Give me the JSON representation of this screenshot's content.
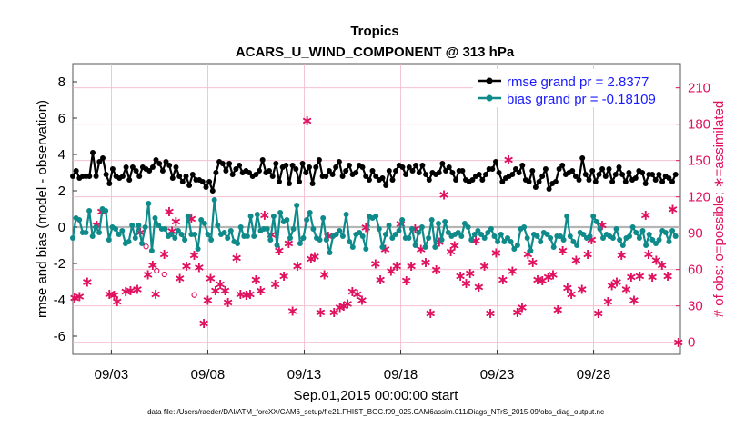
{
  "chart_data": {
    "type": "line",
    "title": "Tropics",
    "subtitle": "ACARS_U_WIND_COMPONENT @ 313 hPa",
    "xlabel": "Sep.01,2015 00:00:00 start",
    "ylabel": "rmse and bias (model - observation)",
    "y2label": "# of obs: o=possible; ∗=assimilated",
    "footer": "data file: /Users/raeder/DAI/ATM_forcXX/CAM6_setup/f.e21.FHIST_BGC.f09_025.CAM6assim.011/Diags_NTrS_2015-09/obs_diag_output.nc",
    "x_range_days": [
      0,
      31.5
    ],
    "x_ticks": [
      {
        "day": 2,
        "label": "09/03"
      },
      {
        "day": 7,
        "label": "09/08"
      },
      {
        "day": 12,
        "label": "09/13"
      },
      {
        "day": 17,
        "label": "09/18"
      },
      {
        "day": 22,
        "label": "09/23"
      },
      {
        "day": 27,
        "label": "09/28"
      }
    ],
    "ylim": [
      -7,
      9
    ],
    "y_ticks": [
      -6,
      -4,
      -2,
      0,
      2,
      4,
      6,
      8
    ],
    "y2lim": [
      -10,
      230
    ],
    "y2_ticks": [
      0,
      30,
      60,
      90,
      120,
      150,
      180,
      210
    ],
    "zero_line": 0,
    "legend_position": "top-right",
    "series": [
      {
        "name": "rmse grand pr = 2.8377",
        "color": "#000000",
        "values": [
          2.8,
          3.1,
          2.7,
          2.8,
          2.8,
          2.8,
          4.1,
          2.8,
          3.6,
          3.8,
          2.9,
          2.4,
          3.2,
          2.8,
          2.7,
          2.8,
          3.3,
          2.6,
          3.3,
          3.1,
          2.8,
          3.3,
          3.2,
          3.1,
          3.3,
          3.7,
          3.5,
          3.1,
          3.6,
          3.4,
          2.7,
          3.3,
          2.8,
          2.5,
          2.8,
          2.3,
          2.9,
          2.6,
          2.6,
          2.5,
          2.2,
          2.5,
          2.0,
          3.0,
          3.6,
          3.5,
          3.1,
          3.5,
          2.9,
          3.2,
          3.4,
          3.0,
          3.1,
          3.0,
          2.8,
          2.9,
          3.1,
          3.7,
          3.0,
          3.1,
          2.8,
          3.5,
          2.5,
          3.3,
          3.4,
          2.4,
          3.4,
          3.2,
          2.5,
          3.5,
          3.0,
          3.3,
          2.4,
          3.3,
          3.7,
          2.8,
          2.8,
          3.1,
          2.9,
          3.3,
          3.6,
          2.8,
          3.1,
          3.4,
          2.9,
          3.0,
          3.4,
          3.3,
          2.8,
          2.6,
          3.1,
          2.8,
          2.6,
          2.7,
          2.3,
          3.1,
          2.6,
          3.1,
          3.4,
          3.3,
          2.9,
          3.3,
          3.1,
          3.4,
          3.0,
          3.4,
          2.9,
          2.6,
          3.0,
          2.9,
          3.0,
          3.5,
          3.1,
          3.3,
          3.0,
          2.6,
          3.1,
          3.1,
          2.6,
          2.5,
          2.6,
          2.8,
          2.9,
          2.6,
          2.9,
          3.2,
          3.2,
          3.6,
          3.0,
          2.5,
          2.7,
          2.8,
          2.9,
          3.2,
          3.0,
          3.4,
          2.6,
          2.5,
          3.1,
          2.2,
          2.5,
          2.8,
          3.2,
          2.1,
          2.4,
          2.5,
          3.2,
          3.4,
          2.9,
          3.0,
          3.1,
          2.8,
          2.6,
          3.8,
          2.9,
          2.6,
          3.1,
          2.5,
          2.9,
          3.2,
          2.8,
          3.2,
          2.5,
          2.9,
          3.3,
          2.9,
          2.5,
          3.0,
          2.6,
          2.7,
          3.1,
          3.0,
          2.4,
          2.9,
          2.9,
          2.6,
          2.9,
          2.5,
          2.8,
          2.7,
          2.5,
          2.9
        ]
      },
      {
        "name": "bias grand pr = -0.18109",
        "color": "#0e8a8a",
        "values": [
          -0.6,
          0.5,
          0.4,
          -0.3,
          -0.3,
          0.9,
          -0.5,
          0.0,
          -0.3,
          1.0,
          0.9,
          -0.7,
          0.0,
          -0.1,
          -0.4,
          -0.2,
          -0.9,
          -0.8,
          0.1,
          -0.6,
          0.1,
          -0.9,
          0.0,
          1.3,
          -1.3,
          0.5,
          0.1,
          -0.1,
          -0.1,
          -0.5,
          -0.4,
          -0.6,
          -0.2,
          -0.4,
          -0.7,
          0.6,
          -0.4,
          -0.4,
          -1.2,
          0.4,
          0.2,
          -0.4,
          -0.7,
          1.5,
          0.1,
          -0.4,
          -0.3,
          -0.6,
          -0.2,
          -0.8,
          -0.9,
          0.0,
          -0.5,
          -0.5,
          0.6,
          -0.5,
          0.7,
          -0.2,
          -0.1,
          -0.1,
          -0.7,
          0.6,
          -1.0,
          0.8,
          0.3,
          0.4,
          -0.6,
          -0.1,
          1.2,
          -0.9,
          -0.6,
          0.4,
          0.8,
          -0.1,
          -0.6,
          -0.7,
          0.5,
          -0.7,
          -1.4,
          -0.5,
          -0.4,
          -0.2,
          -0.5,
          0.7,
          -0.8,
          -1.1,
          -0.4,
          -0.3,
          -0.5,
          -1.2,
          0.6,
          0.5,
          0.6,
          -0.1,
          -1.1,
          -0.4,
          0.1,
          -0.6,
          -0.4,
          -0.2,
          0.4,
          -0.6,
          -0.6,
          -0.1,
          -1.0,
          -0.3,
          0.0,
          -1.1,
          -0.6,
          0.4,
          -1.1,
          0.2,
          -0.7,
          0.3,
          -0.3,
          -0.5,
          -0.4,
          -0.3,
          -0.5,
          0.2,
          0.0,
          -0.7,
          -0.4,
          -0.2,
          -0.4,
          -0.6,
          -0.3,
          -0.1,
          -0.5,
          -0.8,
          -0.4,
          -0.8,
          -0.6,
          -0.8,
          -1.2,
          -1.0,
          -0.1,
          0.0,
          -0.6,
          -1.3,
          -0.4,
          -0.5,
          -0.8,
          -0.3,
          -0.4,
          -0.6,
          -1.1,
          -0.5,
          -0.5,
          -0.7,
          0.6,
          -0.5,
          -0.8,
          -1.0,
          -0.3,
          -0.4,
          -0.6,
          -0.5,
          0.6,
          0.3,
          -0.1,
          -0.6,
          -0.4,
          -0.5,
          -0.6,
          -0.1,
          -0.7,
          -1.0,
          -0.6,
          -0.5,
          0.0,
          -0.3,
          -0.6,
          -0.2,
          -1.0,
          -0.4,
          -0.7,
          -0.9,
          -0.7,
          -0.2,
          -0.3,
          -0.8,
          -0.2,
          -0.5
        ]
      },
      {
        "name": "# of obs assimilated",
        "axis": "right",
        "color": "#e0115f",
        "points": [
          [
            0.1,
            37
          ],
          [
            0.35,
            38
          ],
          [
            0.75,
            50
          ],
          [
            1.25,
            97
          ],
          [
            1.5,
            108
          ],
          [
            1.9,
            40
          ],
          [
            2.15,
            39
          ],
          [
            2.3,
            34
          ],
          [
            2.75,
            42
          ],
          [
            3.0,
            43
          ],
          [
            3.35,
            44
          ],
          [
            3.5,
            91
          ],
          [
            3.9,
            56
          ],
          [
            4.15,
            64
          ],
          [
            4.3,
            40
          ],
          [
            4.75,
            73
          ],
          [
            5.0,
            108
          ],
          [
            5.15,
            92
          ],
          [
            5.35,
            100
          ],
          [
            5.55,
            53
          ],
          [
            5.9,
            63
          ],
          [
            6.15,
            102
          ],
          [
            6.3,
            72
          ],
          [
            6.55,
            62
          ],
          [
            6.8,
            16
          ],
          [
            7.0,
            35
          ],
          [
            7.15,
            53
          ],
          [
            7.4,
            43
          ],
          [
            7.65,
            48
          ],
          [
            7.9,
            43
          ],
          [
            8.05,
            33
          ],
          [
            8.5,
            70
          ],
          [
            8.7,
            40
          ],
          [
            9.0,
            39
          ],
          [
            9.2,
            40
          ],
          [
            9.5,
            52
          ],
          [
            9.75,
            43
          ],
          [
            9.95,
            105
          ],
          [
            10.3,
            89
          ],
          [
            10.5,
            48
          ],
          [
            10.7,
            76
          ],
          [
            10.95,
            55
          ],
          [
            11.2,
            82
          ],
          [
            11.4,
            26
          ],
          [
            11.65,
            63
          ],
          [
            12.15,
            183
          ],
          [
            12.35,
            69
          ],
          [
            12.55,
            71
          ],
          [
            12.85,
            25
          ],
          [
            13.05,
            56
          ],
          [
            13.25,
            88
          ],
          [
            13.55,
            25
          ],
          [
            13.85,
            29
          ],
          [
            14.05,
            30
          ],
          [
            14.25,
            32
          ],
          [
            14.5,
            42
          ],
          [
            14.75,
            40
          ],
          [
            15.0,
            35
          ],
          [
            15.2,
            95
          ],
          [
            15.7,
            65
          ],
          [
            15.95,
            52
          ],
          [
            16.2,
            77
          ],
          [
            16.5,
            59
          ],
          [
            16.8,
            63
          ],
          [
            17.0,
            98
          ],
          [
            17.3,
            51
          ],
          [
            17.55,
            63
          ],
          [
            17.75,
            94
          ],
          [
            18.05,
            77
          ],
          [
            18.3,
            66
          ],
          [
            18.55,
            24
          ],
          [
            18.85,
            60
          ],
          [
            19.0,
            83
          ],
          [
            19.25,
            122
          ],
          [
            19.6,
            75
          ],
          [
            19.8,
            80
          ],
          [
            20.1,
            55
          ],
          [
            20.4,
            49
          ],
          [
            20.6,
            57
          ],
          [
            20.9,
            84
          ],
          [
            21.05,
            46
          ],
          [
            21.35,
            63
          ],
          [
            21.65,
            24
          ],
          [
            21.95,
            74
          ],
          [
            22.3,
            52
          ],
          [
            22.6,
            151
          ],
          [
            22.8,
            59
          ],
          [
            23.05,
            25
          ],
          [
            23.3,
            29
          ],
          [
            23.6,
            73
          ],
          [
            23.85,
            66
          ],
          [
            24.1,
            52
          ],
          [
            24.35,
            51
          ],
          [
            24.65,
            54
          ],
          [
            24.9,
            56
          ],
          [
            25.15,
            27
          ],
          [
            25.4,
            76
          ],
          [
            25.65,
            45
          ],
          [
            25.85,
            40
          ],
          [
            26.1,
            68
          ],
          [
            26.4,
            44
          ],
          [
            26.7,
            73
          ],
          [
            26.9,
            85
          ],
          [
            27.25,
            24
          ],
          [
            27.45,
            97
          ],
          [
            27.75,
            34
          ],
          [
            27.95,
            47
          ],
          [
            28.2,
            50
          ],
          [
            28.45,
            72
          ],
          [
            28.7,
            44
          ],
          [
            28.95,
            54
          ],
          [
            29.1,
            35
          ],
          [
            29.4,
            55
          ],
          [
            29.7,
            105
          ],
          [
            29.85,
            73
          ],
          [
            30.05,
            54
          ],
          [
            30.25,
            68
          ],
          [
            30.55,
            64
          ],
          [
            30.85,
            55
          ],
          [
            31.1,
            110
          ],
          [
            31.4,
            0
          ]
        ]
      },
      {
        "name": "# of obs possible",
        "axis": "right",
        "color": "#e0115f",
        "marker": "circle",
        "points": [
          [
            3.8,
            79
          ],
          [
            4.35,
            59
          ],
          [
            4.75,
            56
          ],
          [
            6.3,
            39
          ]
        ]
      }
    ]
  }
}
